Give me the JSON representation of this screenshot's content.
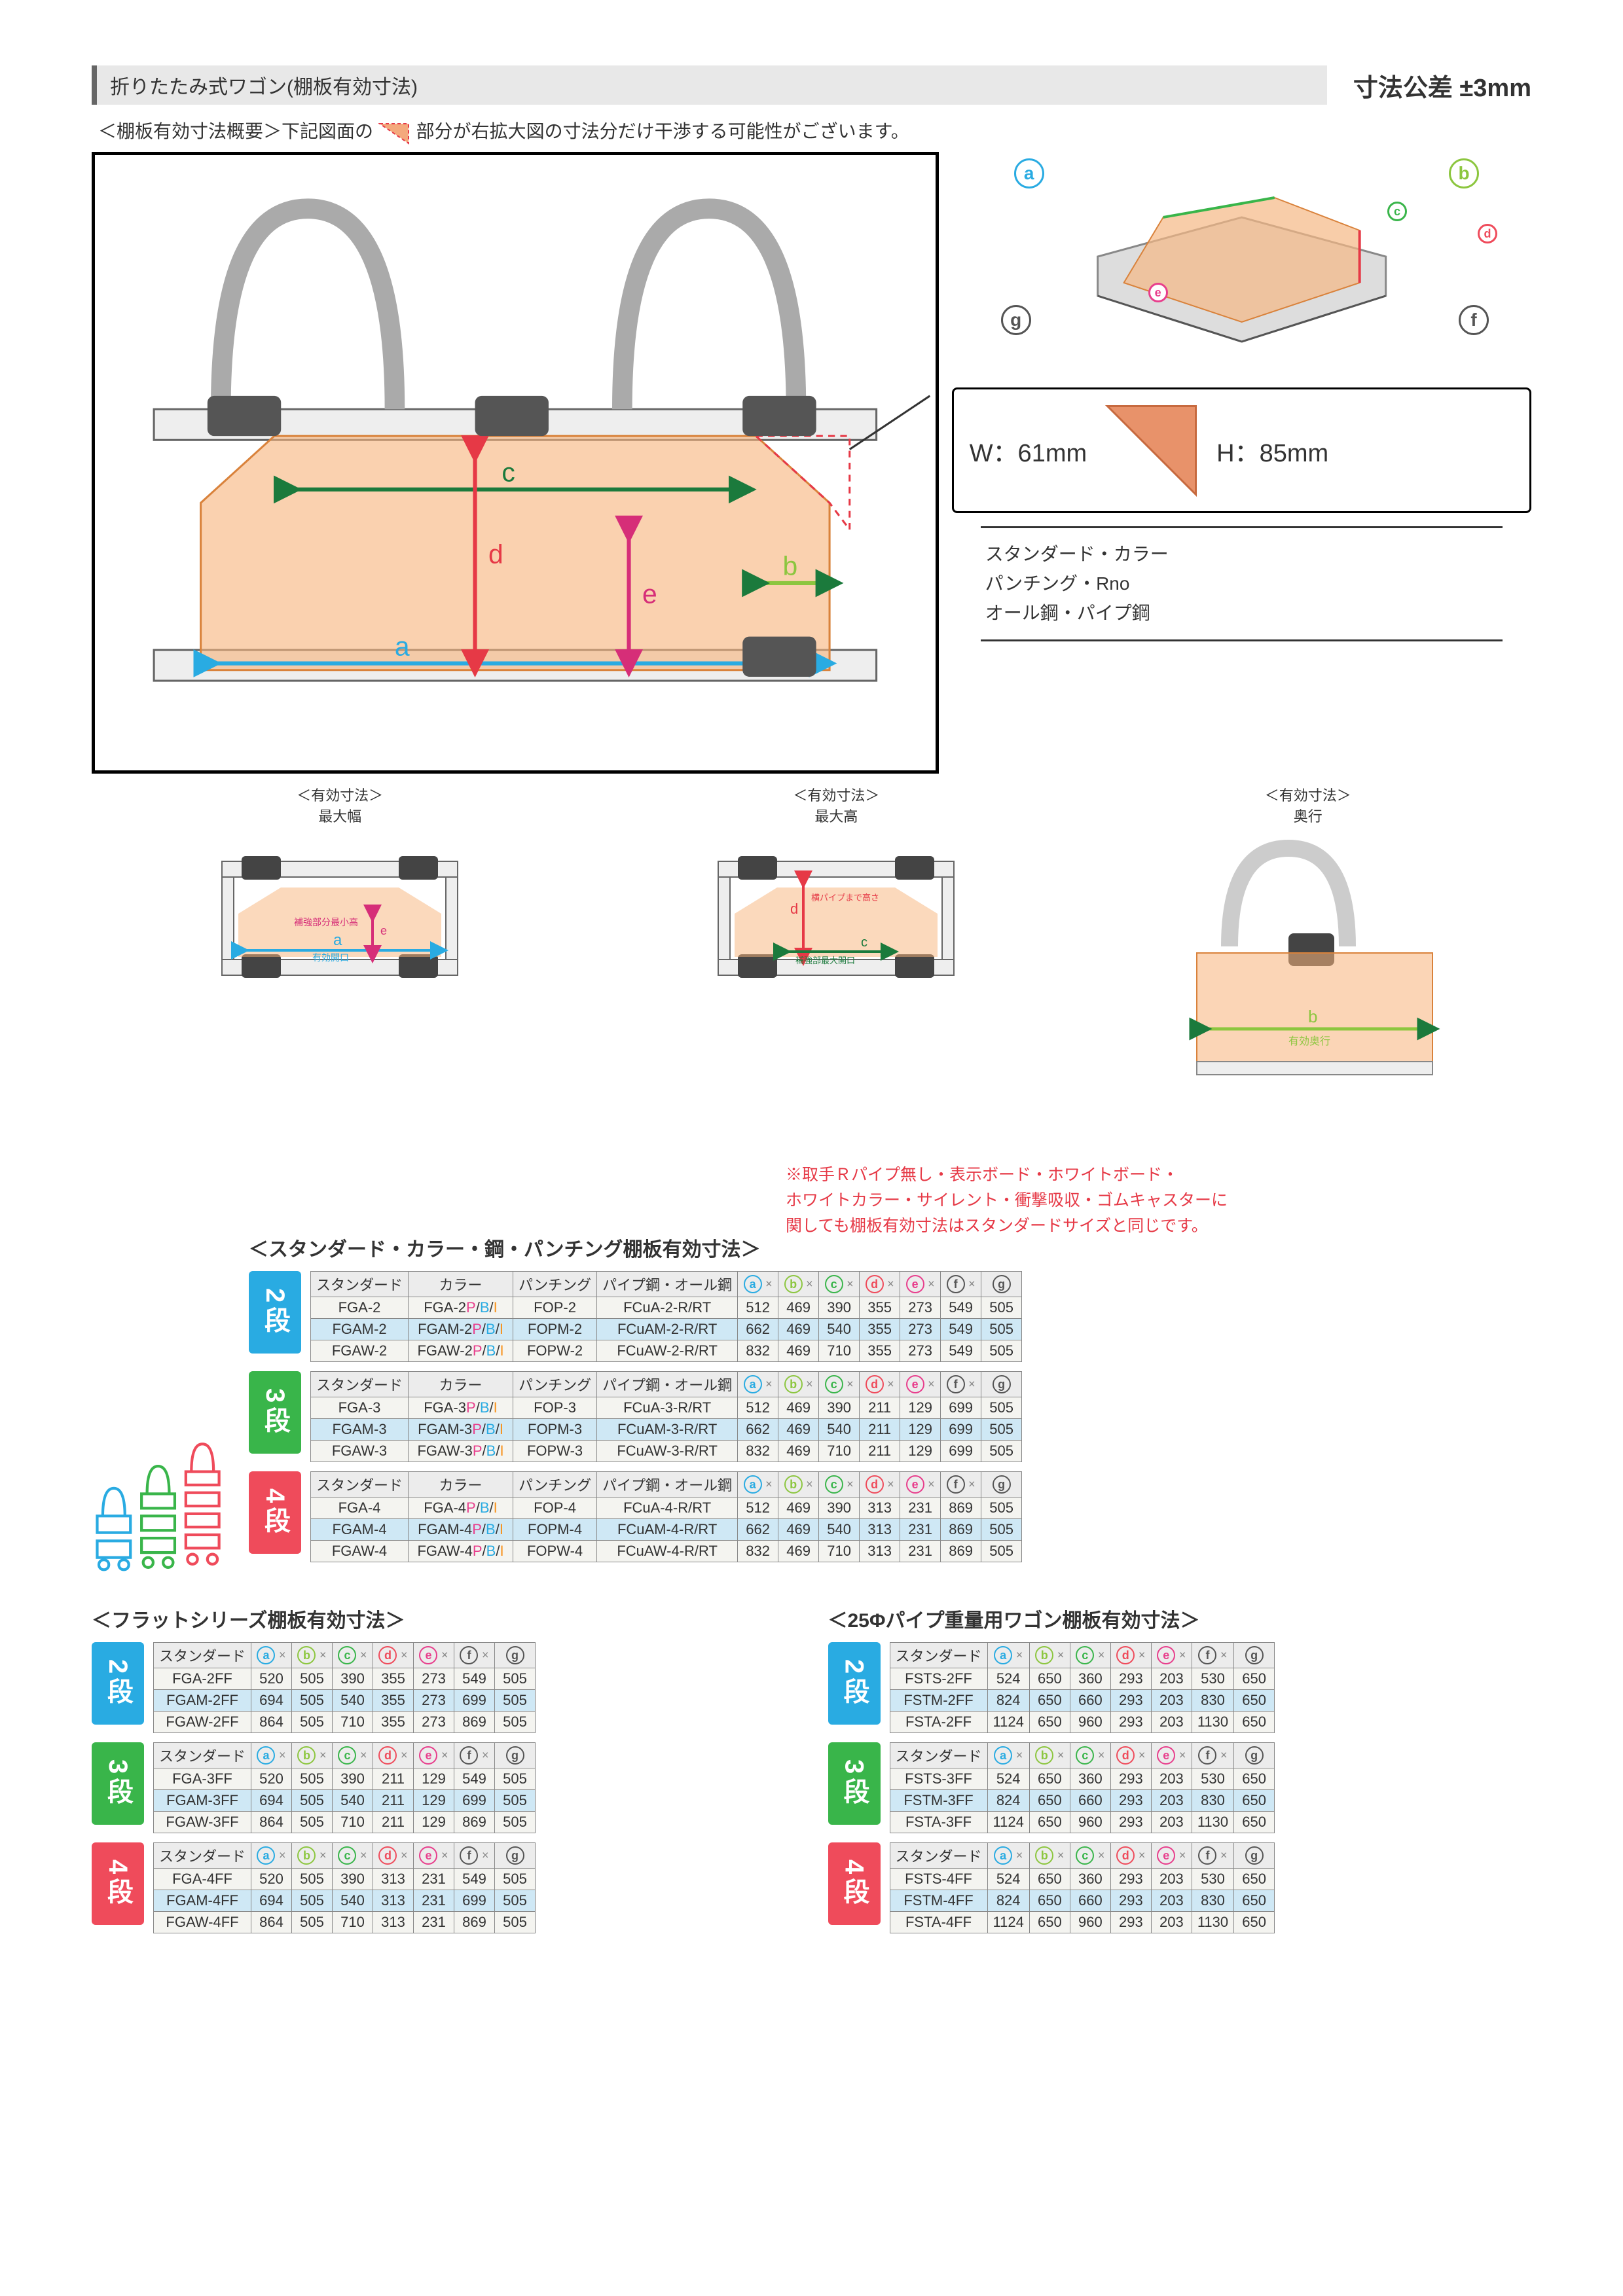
{
  "header": {
    "left": "折りたたみ式ワゴン(棚板有効寸法)",
    "right": "寸法公差 ±3mm"
  },
  "intro_a": "＜棚板有効寸法概要＞下記図面の",
  "intro_b": "部分が右拡大図の寸法分だけ干渉する可能性がございます。",
  "tri": {
    "w": "W：61mm",
    "h": "H：85mm"
  },
  "types_lines": [
    "スタンダード・カラー",
    "パンチング・Rno",
    "オール鋼・パイプ鋼"
  ],
  "sub_labels": {
    "width": "＜有効寸法＞\n最大幅",
    "height": "＜有効寸法＞\n最大高",
    "depth": "＜有効寸法＞\n奥行"
  },
  "sub_anno": {
    "a": "a",
    "a_sub": "有効開口",
    "e": "e",
    "e_sub": "補強部分最小高",
    "d": "d",
    "d_sub": "横パイプまで高さ",
    "c": "c",
    "c_sub": "補強部最大開口",
    "b": "b",
    "b_sub": "有効奥行"
  },
  "red_note": "※取手Ｒパイプ無し・表示ボード・ホワイトボード・\nホワイトカラー・サイレント・衝撃吸収・ゴムキャスターに\n関しても棚板有効寸法はスタンダードサイズと同じです。",
  "sec1_title": "＜スタンダード・カラー・鋼・パンチング棚板有効寸法＞",
  "dim_header_letters": [
    "a",
    "b",
    "c",
    "d",
    "e",
    "f",
    "g"
  ],
  "dim_header_classes": [
    "c-a",
    "c-b",
    "c-c",
    "c-d",
    "c-e",
    "c-f",
    "c-g"
  ],
  "sec1_col_headers": [
    "スタンダード",
    "カラー",
    "パンチング",
    "パイプ鋼・オール鋼"
  ],
  "sec1_groups": [
    {
      "dan": "2段",
      "dan_class": "dan-2",
      "rows": [
        {
          "blue": false,
          "cells": [
            "FGA-2",
            "FGA-2P/B/I",
            "FOP-2",
            "FCuA-2-R/RT",
            "512",
            "469",
            "390",
            "355",
            "273",
            "549",
            "505"
          ]
        },
        {
          "blue": true,
          "cells": [
            "FGAM-2",
            "FGAM-2P/B/I",
            "FOPM-2",
            "FCuAM-2-R/RT",
            "662",
            "469",
            "540",
            "355",
            "273",
            "549",
            "505"
          ]
        },
        {
          "blue": false,
          "cells": [
            "FGAW-2",
            "FGAW-2P/B/I",
            "FOPW-2",
            "FCuAW-2-R/RT",
            "832",
            "469",
            "710",
            "355",
            "273",
            "549",
            "505"
          ]
        }
      ]
    },
    {
      "dan": "3段",
      "dan_class": "dan-3",
      "rows": [
        {
          "blue": false,
          "cells": [
            "FGA-3",
            "FGA-3P/B/I",
            "FOP-3",
            "FCuA-3-R/RT",
            "512",
            "469",
            "390",
            "211",
            "129",
            "699",
            "505"
          ]
        },
        {
          "blue": true,
          "cells": [
            "FGAM-3",
            "FGAM-3P/B/I",
            "FOPM-3",
            "FCuAM-3-R/RT",
            "662",
            "469",
            "540",
            "211",
            "129",
            "699",
            "505"
          ]
        },
        {
          "blue": false,
          "cells": [
            "FGAW-3",
            "FGAW-3P/B/I",
            "FOPW-3",
            "FCuAW-3-R/RT",
            "832",
            "469",
            "710",
            "211",
            "129",
            "699",
            "505"
          ]
        }
      ]
    },
    {
      "dan": "4段",
      "dan_class": "dan-4",
      "rows": [
        {
          "blue": false,
          "cells": [
            "FGA-4",
            "FGA-4P/B/I",
            "FOP-4",
            "FCuA-4-R/RT",
            "512",
            "469",
            "390",
            "313",
            "231",
            "869",
            "505"
          ]
        },
        {
          "blue": true,
          "cells": [
            "FGAM-4",
            "FGAM-4P/B/I",
            "FOPM-4",
            "FCuAM-4-R/RT",
            "662",
            "469",
            "540",
            "313",
            "231",
            "869",
            "505"
          ]
        },
        {
          "blue": false,
          "cells": [
            "FGAW-4",
            "FGAW-4P/B/I",
            "FOPW-4",
            "FCuAW-4-R/RT",
            "832",
            "469",
            "710",
            "313",
            "231",
            "869",
            "505"
          ]
        }
      ]
    }
  ],
  "sec2_title": "＜フラットシリーズ棚板有効寸法＞",
  "sec2_header": "スタンダード",
  "sec2_groups": [
    {
      "dan": "2段",
      "dan_class": "dan-2",
      "rows": [
        {
          "blue": false,
          "cells": [
            "FGA-2FF",
            "520",
            "505",
            "390",
            "355",
            "273",
            "549",
            "505"
          ]
        },
        {
          "blue": true,
          "cells": [
            "FGAM-2FF",
            "694",
            "505",
            "540",
            "355",
            "273",
            "699",
            "505"
          ]
        },
        {
          "blue": false,
          "cells": [
            "FGAW-2FF",
            "864",
            "505",
            "710",
            "355",
            "273",
            "869",
            "505"
          ]
        }
      ]
    },
    {
      "dan": "3段",
      "dan_class": "dan-3",
      "rows": [
        {
          "blue": false,
          "cells": [
            "FGA-3FF",
            "520",
            "505",
            "390",
            "211",
            "129",
            "549",
            "505"
          ]
        },
        {
          "blue": true,
          "cells": [
            "FGAM-3FF",
            "694",
            "505",
            "540",
            "211",
            "129",
            "699",
            "505"
          ]
        },
        {
          "blue": false,
          "cells": [
            "FGAW-3FF",
            "864",
            "505",
            "710",
            "211",
            "129",
            "869",
            "505"
          ]
        }
      ]
    },
    {
      "dan": "4段",
      "dan_class": "dan-4",
      "rows": [
        {
          "blue": false,
          "cells": [
            "FGA-4FF",
            "520",
            "505",
            "390",
            "313",
            "231",
            "549",
            "505"
          ]
        },
        {
          "blue": true,
          "cells": [
            "FGAM-4FF",
            "694",
            "505",
            "540",
            "313",
            "231",
            "699",
            "505"
          ]
        },
        {
          "blue": false,
          "cells": [
            "FGAW-4FF",
            "864",
            "505",
            "710",
            "313",
            "231",
            "869",
            "505"
          ]
        }
      ]
    }
  ],
  "sec3_title": "＜25Φパイプ重量用ワゴン棚板有効寸法＞",
  "sec3_groups": [
    {
      "dan": "2段",
      "dan_class": "dan-2",
      "rows": [
        {
          "blue": false,
          "cells": [
            "FSTS-2FF",
            "524",
            "650",
            "360",
            "293",
            "203",
            "530",
            "650"
          ]
        },
        {
          "blue": true,
          "cells": [
            "FSTM-2FF",
            "824",
            "650",
            "660",
            "293",
            "203",
            "830",
            "650"
          ]
        },
        {
          "blue": false,
          "cells": [
            "FSTA-2FF",
            "1124",
            "650",
            "960",
            "293",
            "203",
            "1130",
            "650"
          ]
        }
      ]
    },
    {
      "dan": "3段",
      "dan_class": "dan-3",
      "rows": [
        {
          "blue": false,
          "cells": [
            "FSTS-3FF",
            "524",
            "650",
            "360",
            "293",
            "203",
            "530",
            "650"
          ]
        },
        {
          "blue": true,
          "cells": [
            "FSTM-3FF",
            "824",
            "650",
            "660",
            "293",
            "203",
            "830",
            "650"
          ]
        },
        {
          "blue": false,
          "cells": [
            "FSTA-3FF",
            "1124",
            "650",
            "960",
            "293",
            "203",
            "1130",
            "650"
          ]
        }
      ]
    },
    {
      "dan": "4段",
      "dan_class": "dan-4",
      "rows": [
        {
          "blue": false,
          "cells": [
            "FSTS-4FF",
            "524",
            "650",
            "360",
            "293",
            "203",
            "530",
            "650"
          ]
        },
        {
          "blue": true,
          "cells": [
            "FSTM-4FF",
            "824",
            "650",
            "660",
            "293",
            "203",
            "830",
            "650"
          ]
        },
        {
          "blue": false,
          "cells": [
            "FSTA-4FF",
            "1124",
            "650",
            "960",
            "293",
            "203",
            "1130",
            "650"
          ]
        }
      ]
    }
  ]
}
